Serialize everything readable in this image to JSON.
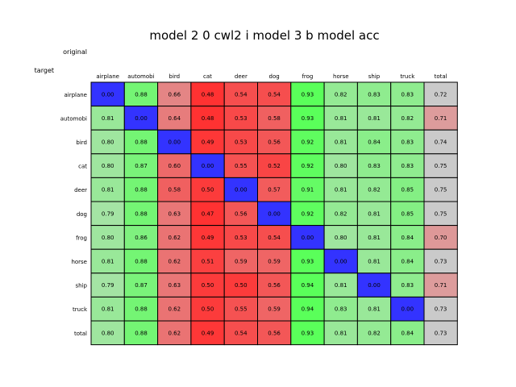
{
  "chart_data": {
    "type": "heatmap",
    "title": "model 2 0 cwl2 i model 3 b model acc",
    "corner_labels": {
      "columns": "original",
      "rows": "target"
    },
    "columns": [
      "airplane",
      "automobi",
      "bird",
      "cat",
      "deer",
      "dog",
      "frog",
      "horse",
      "ship",
      "truck",
      "total"
    ],
    "rows": [
      "airplane",
      "automobi",
      "bird",
      "cat",
      "deer",
      "dog",
      "frog",
      "horse",
      "ship",
      "truck",
      "total"
    ],
    "cells": [
      [
        "0.00",
        "0.88",
        "0.66",
        "0.48",
        "0.54",
        "0.54",
        "0.93",
        "0.82",
        "0.83",
        "0.83",
        "0.72"
      ],
      [
        "0.81",
        "0.00",
        "0.64",
        "0.48",
        "0.53",
        "0.58",
        "0.93",
        "0.81",
        "0.81",
        "0.82",
        "0.71"
      ],
      [
        "0.80",
        "0.88",
        "0.00",
        "0.49",
        "0.53",
        "0.56",
        "0.92",
        "0.81",
        "0.84",
        "0.83",
        "0.74"
      ],
      [
        "0.80",
        "0.87",
        "0.60",
        "0.00",
        "0.55",
        "0.52",
        "0.92",
        "0.80",
        "0.83",
        "0.83",
        "0.75"
      ],
      [
        "0.81",
        "0.88",
        "0.58",
        "0.50",
        "0.00",
        "0.57",
        "0.91",
        "0.81",
        "0.82",
        "0.85",
        "0.75"
      ],
      [
        "0.79",
        "0.88",
        "0.63",
        "0.47",
        "0.56",
        "0.00",
        "0.92",
        "0.82",
        "0.81",
        "0.85",
        "0.75"
      ],
      [
        "0.80",
        "0.86",
        "0.62",
        "0.49",
        "0.53",
        "0.54",
        "0.00",
        "0.80",
        "0.81",
        "0.84",
        "0.70"
      ],
      [
        "0.81",
        "0.88",
        "0.62",
        "0.51",
        "0.59",
        "0.59",
        "0.93",
        "0.00",
        "0.81",
        "0.84",
        "0.73"
      ],
      [
        "0.79",
        "0.87",
        "0.63",
        "0.50",
        "0.50",
        "0.56",
        "0.94",
        "0.81",
        "0.00",
        "0.83",
        "0.71"
      ],
      [
        "0.81",
        "0.88",
        "0.62",
        "0.50",
        "0.55",
        "0.59",
        "0.94",
        "0.83",
        "0.81",
        "0.00",
        "0.73"
      ],
      [
        "0.80",
        "0.88",
        "0.62",
        "0.49",
        "0.54",
        "0.56",
        "0.93",
        "0.81",
        "0.82",
        "0.84",
        "0.73"
      ]
    ],
    "colors": {
      "diagonal": "#3333ff",
      "grid_line": "#000000"
    }
  }
}
